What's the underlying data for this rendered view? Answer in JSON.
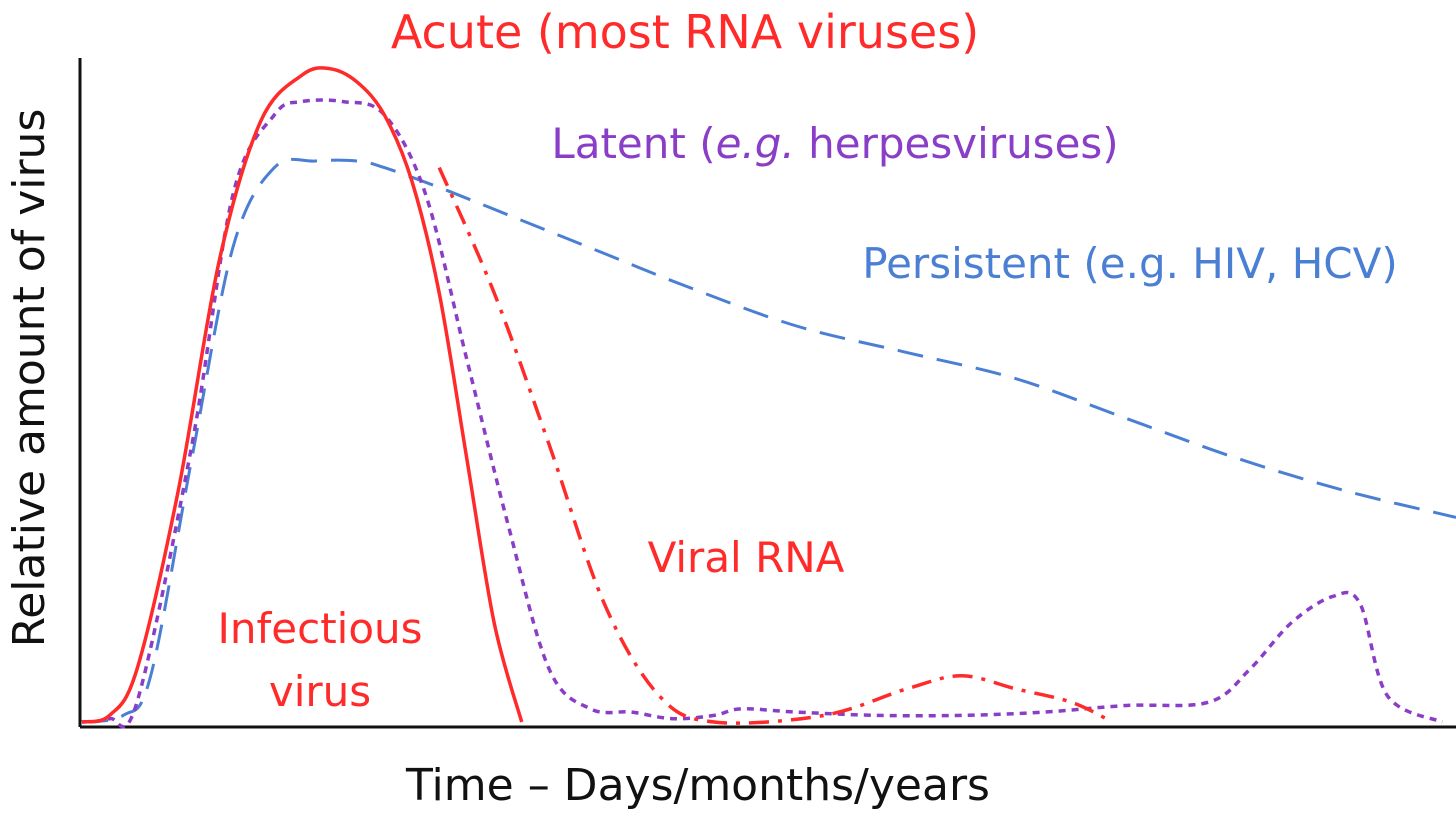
{
  "chart_data": {
    "type": "line",
    "xlabel": "Time – Days/months/years",
    "ylabel": "Relative amount of virus",
    "xlim": [
      0,
      100
    ],
    "ylim": [
      0,
      100
    ],
    "axis_color": "#111111",
    "series": [
      {
        "key": "acute",
        "color": "#ff2a2a",
        "dash": "solid",
        "points": [
          [
            0,
            0
          ],
          [
            2,
            1
          ],
          [
            4,
            8
          ],
          [
            7,
            35
          ],
          [
            10,
            70
          ],
          [
            13,
            91
          ],
          [
            16,
            98
          ],
          [
            18,
            99
          ],
          [
            20,
            97
          ],
          [
            22,
            92
          ],
          [
            24,
            82
          ],
          [
            26,
            65
          ],
          [
            28,
            40
          ],
          [
            30,
            15
          ],
          [
            32,
            0
          ]
        ]
      },
      {
        "key": "viral_rna",
        "color": "#ff2a2a",
        "dash": "dashdot",
        "points": [
          [
            26,
            84
          ],
          [
            30,
            65
          ],
          [
            34,
            42
          ],
          [
            38,
            18
          ],
          [
            42,
            4
          ],
          [
            46,
            0
          ],
          [
            54,
            1
          ],
          [
            60,
            5
          ],
          [
            64,
            7
          ],
          [
            68,
            5
          ],
          [
            72,
            3
          ],
          [
            75,
            0
          ]
        ]
      },
      {
        "key": "latent",
        "color": "#8a3ec7",
        "dash": "dot",
        "points": [
          [
            0,
            0
          ],
          [
            2,
            0.5
          ],
          [
            4,
            3
          ],
          [
            8,
            42
          ],
          [
            11,
            80
          ],
          [
            14,
            92
          ],
          [
            16,
            94
          ],
          [
            19,
            94
          ],
          [
            22,
            92
          ],
          [
            25,
            80
          ],
          [
            28,
            55
          ],
          [
            31,
            30
          ],
          [
            34,
            8
          ],
          [
            37,
            2
          ],
          [
            40,
            1.5
          ],
          [
            43,
            0.5
          ],
          [
            46,
            1
          ],
          [
            48,
            2
          ],
          [
            52,
            1.5
          ],
          [
            58,
            1
          ],
          [
            64,
            1
          ],
          [
            70,
            1.5
          ],
          [
            76,
            2.5
          ],
          [
            82,
            3
          ],
          [
            85,
            8
          ],
          [
            88,
            15
          ],
          [
            91,
            19
          ],
          [
            93,
            18
          ],
          [
            95,
            4
          ],
          [
            99,
            0
          ]
        ]
      },
      {
        "key": "persistent",
        "color": "#4a7fd4",
        "dash": "dash",
        "points": [
          [
            0,
            0
          ],
          [
            3,
            1
          ],
          [
            5,
            7
          ],
          [
            8,
            40
          ],
          [
            11,
            72
          ],
          [
            14,
            84
          ],
          [
            17,
            85
          ],
          [
            20,
            85
          ],
          [
            22,
            84
          ],
          [
            26,
            81
          ],
          [
            32,
            76
          ],
          [
            38,
            71
          ],
          [
            44,
            66
          ],
          [
            52,
            60
          ],
          [
            60,
            56
          ],
          [
            68,
            52
          ],
          [
            76,
            46
          ],
          [
            84,
            40
          ],
          [
            92,
            35
          ],
          [
            100,
            31
          ]
        ]
      }
    ],
    "annotations": [
      {
        "key": "acute_label",
        "text": "Acute (most RNA viruses)",
        "color": "#ff2a2a"
      },
      {
        "key": "latent_label",
        "parts": [
          "Latent (",
          "e.g.",
          " herpesviruses)"
        ],
        "color": "#8a3ec7"
      },
      {
        "key": "persistent_label",
        "text": "Persistent (e.g. HIV, HCV)",
        "color": "#4a7fd4"
      },
      {
        "key": "viral_rna_label",
        "text": "Viral RNA",
        "color": "#ff2a2a"
      },
      {
        "key": "infectious_label",
        "lines": [
          "Infectious",
          "virus"
        ],
        "color": "#ff2a2a"
      }
    ]
  }
}
